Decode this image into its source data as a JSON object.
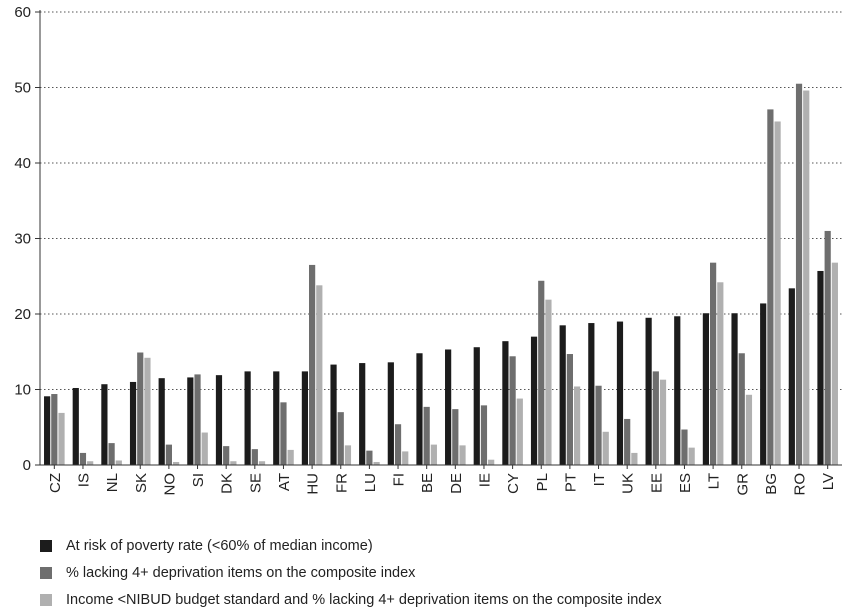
{
  "chart_data": {
    "type": "bar",
    "title": "",
    "xlabel": "",
    "ylabel": "",
    "ylim": [
      0,
      60
    ],
    "yticks": [
      0,
      10,
      20,
      30,
      40,
      50,
      60
    ],
    "grid": "horizontal dotted",
    "legend_position": "bottom",
    "categories": [
      "CZ",
      "IS",
      "NL",
      "SK",
      "NO",
      "SI",
      "DK",
      "SE",
      "AT",
      "HU",
      "FR",
      "LU",
      "FI",
      "BE",
      "DE",
      "IE",
      "CY",
      "PL",
      "PT",
      "IT",
      "UK",
      "EE",
      "ES",
      "LT",
      "GR",
      "BG",
      "RO",
      "LV"
    ],
    "series": [
      {
        "name": "At risk of poverty rate (<60% of median income)",
        "color": "#1c1c1c",
        "values": [
          9.1,
          10.2,
          10.7,
          11.0,
          11.5,
          11.6,
          11.9,
          12.4,
          12.4,
          12.4,
          13.3,
          13.5,
          13.6,
          14.8,
          15.3,
          15.6,
          16.4,
          17.0,
          18.5,
          18.8,
          19.0,
          19.5,
          19.7,
          20.1,
          20.1,
          21.4,
          23.4,
          25.7
        ]
      },
      {
        "name": "% lacking 4+ deprivation items on the composite index",
        "color": "#6e6e6e",
        "values": [
          9.4,
          1.6,
          2.9,
          14.9,
          2.7,
          12.0,
          2.5,
          2.1,
          8.3,
          26.5,
          7.0,
          1.9,
          5.4,
          7.7,
          7.4,
          7.9,
          14.4,
          24.4,
          14.7,
          10.5,
          6.1,
          12.4,
          4.7,
          26.8,
          14.8,
          47.1,
          50.5,
          31.0
        ]
      },
      {
        "name": "Income <NIBUD budget standard and % lacking 4+ deprivation items on the composite index",
        "color": "#b0b0b0",
        "values": [
          6.9,
          0.5,
          0.6,
          14.2,
          0.4,
          4.3,
          0.5,
          0.5,
          2.0,
          23.8,
          2.6,
          0.4,
          1.8,
          2.7,
          2.6,
          0.7,
          8.8,
          21.9,
          10.4,
          4.4,
          1.6,
          11.3,
          2.3,
          24.2,
          9.3,
          45.5,
          49.6,
          26.8
        ]
      }
    ]
  }
}
